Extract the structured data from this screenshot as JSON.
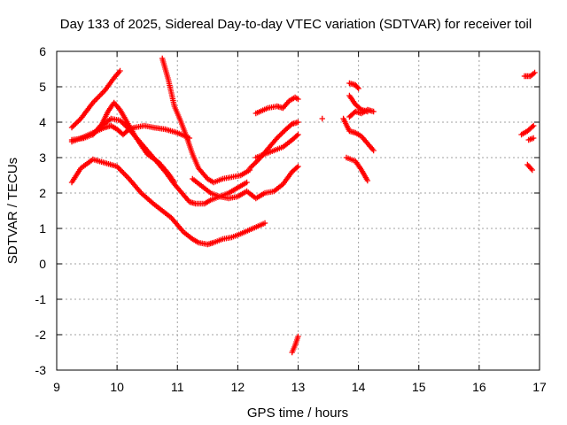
{
  "chart_data": {
    "type": "scatter",
    "title": "Day 133 of 2025, Sidereal Day-to-day VTEC variation (SDTVAR) for receiver toil",
    "xlabel": "GPS time / hours",
    "ylabel": "SDTVAR / TECUs",
    "xlim": [
      9,
      17
    ],
    "ylim": [
      -3,
      6
    ],
    "xticks": [
      "9",
      "10",
      "11",
      "12",
      "13",
      "14",
      "15",
      "16",
      "17"
    ],
    "yticks": [
      "-3",
      "-2",
      "-1",
      "0",
      "1",
      "2",
      "3",
      "4",
      "5",
      "6"
    ],
    "grid": true,
    "marker": "plus",
    "color": "#ff0000",
    "series": [
      {
        "name": "s1",
        "x": [
          9.25,
          9.4,
          9.6,
          9.8,
          9.95,
          10.05
        ],
        "y": [
          3.85,
          4.1,
          4.55,
          4.9,
          5.25,
          5.45
        ]
      },
      {
        "name": "s2",
        "x": [
          9.25,
          9.4,
          9.6,
          9.8,
          9.9,
          10.0,
          10.1,
          10.2,
          10.3,
          10.45,
          10.6,
          10.8,
          11.0,
          11.2
        ],
        "y": [
          3.45,
          3.55,
          3.7,
          3.85,
          3.9,
          3.8,
          3.65,
          3.8,
          3.85,
          3.9,
          3.85,
          3.8,
          3.7,
          3.55
        ]
      },
      {
        "name": "s3",
        "x": [
          9.25,
          9.45,
          9.6,
          9.75,
          9.85,
          9.95,
          10.05,
          10.15,
          10.3,
          10.5,
          10.7,
          10.85,
          10.95
        ],
        "y": [
          3.5,
          3.55,
          3.65,
          3.95,
          4.3,
          4.55,
          4.35,
          4.05,
          3.6,
          3.1,
          2.85,
          2.55,
          2.3
        ]
      },
      {
        "name": "s4",
        "x": [
          9.6,
          9.75,
          9.9,
          10.05,
          10.2,
          10.4,
          10.6,
          10.8,
          10.95,
          11.1,
          11.2,
          11.3,
          11.45,
          11.55,
          11.7,
          11.85,
          12.0,
          12.15
        ],
        "y": [
          3.65,
          3.9,
          4.1,
          4.05,
          3.8,
          3.4,
          3.0,
          2.6,
          2.25,
          1.95,
          1.75,
          1.7,
          1.7,
          1.8,
          1.9,
          2.0,
          2.15,
          2.3
        ]
      },
      {
        "name": "s5",
        "x": [
          9.25,
          9.4,
          9.6,
          9.8,
          10.0,
          10.2,
          10.4,
          10.6,
          10.75,
          10.9,
          11.0,
          11.1,
          11.25,
          11.35,
          11.5,
          11.6,
          11.75,
          11.9,
          12.05,
          12.25,
          12.45
        ],
        "y": [
          2.3,
          2.7,
          2.95,
          2.85,
          2.75,
          2.4,
          2.0,
          1.7,
          1.5,
          1.3,
          1.1,
          0.9,
          0.7,
          0.6,
          0.55,
          0.6,
          0.7,
          0.75,
          0.85,
          1.0,
          1.15
        ]
      },
      {
        "name": "s6",
        "x": [
          10.75,
          10.85,
          10.95,
          11.05,
          11.15,
          11.25,
          11.35,
          11.5,
          11.6,
          11.75,
          11.9,
          12.05,
          12.2
        ],
        "y": [
          5.8,
          5.2,
          4.45,
          4.05,
          3.6,
          3.1,
          2.7,
          2.4,
          2.3,
          2.4,
          2.45,
          2.5,
          2.65
        ]
      },
      {
        "name": "s7",
        "x": [
          11.25,
          11.4,
          11.55,
          11.7,
          11.85,
          12.0,
          12.15,
          12.3,
          12.45,
          12.6,
          12.75,
          12.9,
          13.0
        ],
        "y": [
          2.4,
          2.2,
          2.0,
          1.9,
          1.85,
          1.9,
          2.05,
          1.85,
          2.0,
          2.05,
          2.25,
          2.6,
          2.75
        ]
      },
      {
        "name": "s8",
        "x": [
          12.2,
          12.35,
          12.5,
          12.65,
          12.8,
          12.9,
          13.0
        ],
        "y": [
          2.7,
          2.95,
          3.25,
          3.55,
          3.8,
          3.95,
          4.0
        ]
      },
      {
        "name": "s9",
        "x": [
          12.3,
          12.45,
          12.6,
          12.75,
          12.9,
          13.0
        ],
        "y": [
          3.0,
          3.1,
          3.2,
          3.3,
          3.5,
          3.65
        ]
      },
      {
        "name": "s10",
        "x": [
          12.3,
          12.5,
          12.65,
          12.75,
          12.85,
          12.95,
          13.0
        ],
        "y": [
          4.25,
          4.4,
          4.45,
          4.4,
          4.6,
          4.7,
          4.65
        ]
      },
      {
        "name": "s11",
        "x": [
          12.9,
          12.95,
          13.0
        ],
        "y": [
          -2.5,
          -2.3,
          -2.05
        ]
      },
      {
        "name": "s12",
        "x": [
          13.4
        ],
        "y": [
          4.1
        ]
      },
      {
        "name": "s13",
        "x": [
          13.75,
          13.85,
          13.95,
          14.05,
          14.15,
          14.25
        ],
        "y": [
          4.1,
          3.75,
          3.7,
          3.6,
          3.4,
          3.2
        ]
      },
      {
        "name": "s14",
        "x": [
          13.85,
          13.95,
          14.05,
          14.15
        ],
        "y": [
          4.75,
          4.5,
          4.35,
          4.3
        ]
      },
      {
        "name": "s15",
        "x": [
          13.85,
          13.95,
          14.0
        ],
        "y": [
          5.1,
          5.05,
          4.95
        ]
      },
      {
        "name": "s16",
        "x": [
          13.8,
          13.95,
          14.05,
          14.15
        ],
        "y": [
          3.0,
          2.9,
          2.65,
          2.35
        ]
      },
      {
        "name": "s17",
        "x": [
          13.85,
          13.95,
          14.05,
          14.15,
          14.25
        ],
        "y": [
          4.15,
          4.3,
          4.25,
          4.35,
          4.3
        ]
      },
      {
        "name": "s18",
        "x": [
          16.7,
          16.8,
          16.9
        ],
        "y": [
          3.65,
          3.75,
          3.9
        ]
      },
      {
        "name": "s19",
        "x": [
          16.75,
          16.85,
          16.92
        ],
        "y": [
          5.3,
          5.3,
          5.4
        ]
      },
      {
        "name": "s20",
        "x": [
          16.8,
          16.88
        ],
        "y": [
          2.8,
          2.65
        ]
      },
      {
        "name": "s21",
        "x": [
          16.82,
          16.9
        ],
        "y": [
          3.5,
          3.55
        ]
      }
    ]
  }
}
